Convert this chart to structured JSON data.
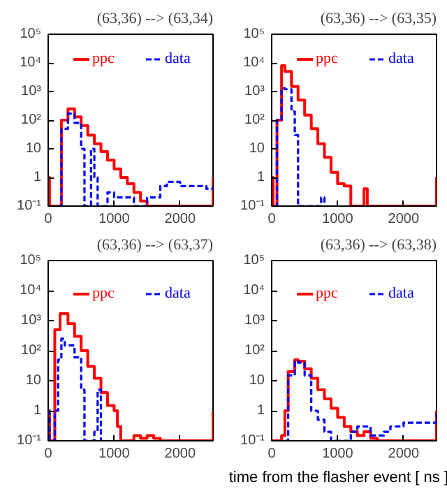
{
  "chart_data": [
    {
      "type": "step",
      "title": "(63,36) --> (63,34)",
      "xlim": [
        0,
        2500
      ],
      "xticks": [
        0,
        1000,
        2000
      ],
      "ylim": [
        0.1,
        100000
      ],
      "log": "y",
      "yticks": [
        {
          "value": 0.1,
          "label": "10⁻¹"
        },
        1,
        10,
        {
          "value": 100,
          "label": "10²"
        },
        {
          "value": 1000,
          "label": "10³"
        },
        {
          "value": 10000,
          "label": "10⁴"
        },
        {
          "value": 100000,
          "label": "10⁵"
        }
      ],
      "legend": "top",
      "grid": false,
      "series": [
        {
          "name": "ppc",
          "color": "#ff0000",
          "line_style": "solid",
          "x": [
            0,
            20,
            150,
            200,
            300,
            400,
            500,
            600,
            700,
            800,
            900,
            1000,
            1100,
            1200,
            1300,
            1400,
            1500,
            2480,
            2500
          ],
          "values": [
            1,
            0.1,
            0.1,
            100,
            250,
            130,
            65,
            30,
            15,
            8,
            4,
            2,
            1,
            0.6,
            0.3,
            0.15,
            0.1,
            0.1,
            1
          ]
        },
        {
          "name": "data",
          "color": "#0000ff",
          "line_style": "dashed",
          "x": [
            150,
            200,
            300,
            400,
            500,
            550,
            650,
            700,
            750,
            900,
            1000,
            1300,
            1500,
            1700,
            1800,
            2000,
            2200,
            2400,
            2500
          ],
          "values": [
            0.1,
            50,
            170,
            80,
            10,
            0.1,
            10,
            1,
            0.1,
            0.3,
            0.2,
            0.1,
            0.2,
            0.5,
            0.7,
            0.5,
            0.5,
            0.4,
            0.5
          ]
        }
      ]
    },
    {
      "type": "step",
      "title": "(63,36) --> (63,35)",
      "xlim": [
        0,
        2500
      ],
      "xticks": [
        0,
        1000,
        2000
      ],
      "ylim": [
        0.1,
        100000
      ],
      "log": "y",
      "yticks": [
        {
          "value": 0.1,
          "label": "10⁻¹"
        },
        1,
        10,
        {
          "value": 100,
          "label": "10²"
        },
        {
          "value": 1000,
          "label": "10³"
        },
        {
          "value": 10000,
          "label": "10⁴"
        },
        {
          "value": 100000,
          "label": "10⁵"
        }
      ],
      "legend": "top",
      "grid": false,
      "series": [
        {
          "name": "ppc",
          "color": "#ff0000",
          "line_style": "solid",
          "x": [
            0,
            20,
            80,
            150,
            200,
            300,
            400,
            500,
            600,
            700,
            800,
            900,
            1000,
            1100,
            1200,
            1400,
            1450,
            2480,
            2500
          ],
          "values": [
            1,
            0.1,
            100,
            8000,
            5000,
            1500,
            500,
            150,
            50,
            15,
            5,
            1.5,
            0.6,
            0.5,
            0.1,
            0.4,
            0.1,
            0.1,
            1
          ]
        },
        {
          "name": "data",
          "color": "#0000ff",
          "line_style": "dashed",
          "x": [
            50,
            80,
            150,
            200,
            300,
            350,
            400,
            750,
            800
          ],
          "values": [
            0.1,
            100,
            1300,
            1200,
            200,
            30,
            0.1,
            0.2,
            0.1
          ]
        }
      ]
    },
    {
      "type": "step",
      "title": "(63,36) --> (63,37)",
      "xlim": [
        0,
        2500
      ],
      "xticks": [
        0,
        1000,
        2000
      ],
      "ylim": [
        0.1,
        100000
      ],
      "log": "y",
      "yticks": [
        {
          "value": 0.1,
          "label": "10⁻¹"
        },
        1,
        10,
        {
          "value": 100,
          "label": "10²"
        },
        {
          "value": 1000,
          "label": "10³"
        },
        {
          "value": 10000,
          "label": "10⁴"
        },
        {
          "value": 100000,
          "label": "10⁵"
        }
      ],
      "legend": "top",
      "grid": false,
      "series": [
        {
          "name": "ppc",
          "color": "#ff0000",
          "line_style": "solid",
          "x": [
            0,
            20,
            80,
            100,
            180,
            300,
            400,
            500,
            600,
            700,
            800,
            900,
            1000,
            1050,
            1100,
            1300,
            1400,
            1500,
            1600,
            1700,
            2480,
            2500
          ],
          "values": [
            1,
            0.1,
            0.1,
            500,
            1700,
            800,
            300,
            100,
            30,
            12,
            4,
            1.5,
            1,
            0.3,
            0.1,
            0.15,
            0.12,
            0.15,
            0.12,
            0.1,
            0.1,
            1
          ]
        },
        {
          "name": "data",
          "color": "#0000ff",
          "line_style": "dashed",
          "x": [
            0,
            20,
            100,
            150,
            200,
            250,
            300,
            400,
            500,
            550,
            700,
            750,
            800
          ],
          "values": [
            1,
            0.1,
            1,
            50,
            250,
            150,
            150,
            60,
            5,
            0.1,
            0.2,
            5,
            0.1
          ]
        }
      ]
    },
    {
      "type": "step",
      "title": "(63,36) --> (63,38)",
      "xlabel": "time from the flasher event [ ns ]",
      "xlim": [
        0,
        2500
      ],
      "xticks": [
        0,
        1000,
        2000
      ],
      "ylim": [
        0.1,
        100000
      ],
      "log": "y",
      "yticks": [
        {
          "value": 0.1,
          "label": "10⁻¹"
        },
        1,
        10,
        {
          "value": 100,
          "label": "10²"
        },
        {
          "value": 1000,
          "label": "10³"
        },
        {
          "value": 10000,
          "label": "10⁴"
        },
        {
          "value": 100000,
          "label": "10⁵"
        }
      ],
      "legend": "top",
      "grid": false,
      "series": [
        {
          "name": "ppc",
          "color": "#ff0000",
          "line_style": "solid",
          "x": [
            0,
            150,
            200,
            250,
            350,
            400,
            500,
            600,
            700,
            800,
            900,
            1000,
            1100,
            1200,
            1300,
            1400,
            1500,
            1600,
            2480,
            2500
          ],
          "values": [
            0.1,
            0.15,
            1,
            20,
            50,
            45,
            25,
            12,
            5,
            2.5,
            1.2,
            0.6,
            0.3,
            0.2,
            0.15,
            0.2,
            0.12,
            0.1,
            0.1,
            1
          ]
        },
        {
          "name": "data",
          "color": "#0000ff",
          "line_style": "dashed",
          "x": [
            200,
            250,
            350,
            400,
            500,
            600,
            700,
            800,
            900,
            1200,
            1300,
            1500,
            1700,
            1800,
            2000,
            2200,
            2400,
            2500
          ],
          "values": [
            0.1,
            15,
            45,
            40,
            15,
            1,
            0.5,
            0.2,
            0.1,
            0.2,
            0.3,
            0.15,
            0.2,
            0.3,
            0.4,
            0.4,
            0.4,
            0.8
          ]
        }
      ]
    }
  ]
}
